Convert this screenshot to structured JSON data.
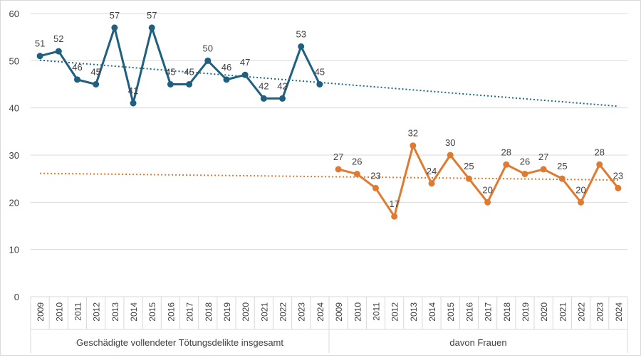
{
  "chart_data": {
    "type": "line",
    "title": "",
    "xlabel": "",
    "ylabel": "",
    "ylim": [
      0,
      60
    ],
    "yticks": [
      0,
      10,
      20,
      30,
      40,
      50,
      60
    ],
    "grid": true,
    "legend": "none",
    "groups": [
      {
        "label": "Geschädigte vollendeter Tötungsdelikte insgesamt",
        "categories": [
          "2009",
          "2010",
          "2011",
          "2012",
          "2013",
          "2014",
          "2015",
          "2016",
          "2017",
          "2018",
          "2019",
          "2020",
          "2021",
          "2022",
          "2023",
          "2024"
        ],
        "values": [
          51,
          52,
          46,
          45,
          57,
          41,
          57,
          45,
          45,
          50,
          46,
          47,
          42,
          42,
          53,
          45
        ],
        "color": "#1f5f80",
        "trendline": {
          "type": "linear",
          "style": "dotted",
          "color": "#1f6a8a"
        }
      },
      {
        "label": "davon Frauen",
        "categories": [
          "2009",
          "2010",
          "2011",
          "2012",
          "2013",
          "2014",
          "2015",
          "2016",
          "2017",
          "2018",
          "2019",
          "2020",
          "2021",
          "2022",
          "2023",
          "2024"
        ],
        "values": [
          27,
          26,
          23,
          17,
          32,
          24,
          30,
          25,
          20,
          28,
          26,
          27,
          25,
          20,
          28,
          23
        ],
        "color": "#e07a30",
        "trendline": {
          "type": "linear",
          "style": "dotted",
          "color": "#e07a30"
        }
      }
    ]
  },
  "colors": {
    "gridline": "#d9d9d9",
    "axis_text": "#404040"
  }
}
